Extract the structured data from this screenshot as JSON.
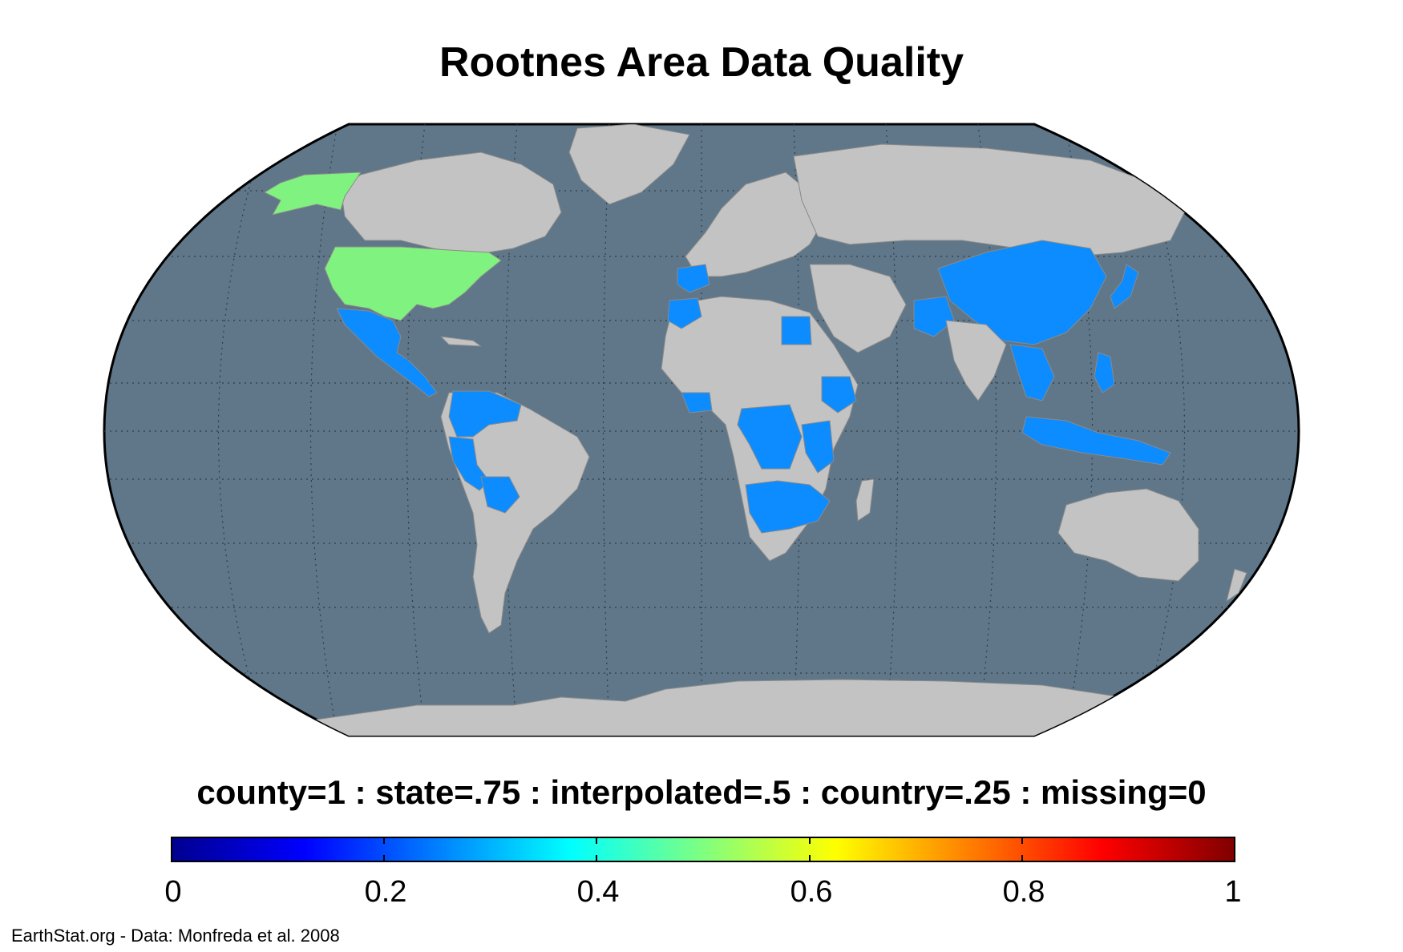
{
  "title": "Rootnes Area Data Quality",
  "legend": {
    "caption": "county=1 : state=.75 : interpolated=.5 : country=.25 : missing=0",
    "ticks": [
      "0",
      "0.2",
      "0.4",
      "0.6",
      "0.8",
      "1"
    ],
    "colormap": "jet",
    "range": [
      0,
      1
    ]
  },
  "credit": "EarthStat.org - Data: Monfreda et al. 2008",
  "colors": {
    "ocean": "#5f7789",
    "land_missing": "#c3c3c3",
    "country_level": "#0c8cff",
    "county_level": "#80f27f"
  },
  "regions": [
    {
      "name": "Alaska",
      "value": 0.5
    },
    {
      "name": "United States",
      "value": 0.5
    },
    {
      "name": "Mexico",
      "value": 0.25
    },
    {
      "name": "Central America",
      "value": 0.25
    },
    {
      "name": "Colombia",
      "value": 0.25
    },
    {
      "name": "Venezuela",
      "value": 0.25
    },
    {
      "name": "Peru",
      "value": 0.25
    },
    {
      "name": "Bolivia",
      "value": 0.25
    },
    {
      "name": "Morocco",
      "value": 0.25
    },
    {
      "name": "Portugal",
      "value": 0.25
    },
    {
      "name": "Egypt",
      "value": 0.25
    },
    {
      "name": "Ethiopia",
      "value": 0.25
    },
    {
      "name": "Ivory Coast",
      "value": 0.25
    },
    {
      "name": "Cameroon",
      "value": 0.25
    },
    {
      "name": "DR Congo",
      "value": 0.25
    },
    {
      "name": "Tanzania",
      "value": 0.25
    },
    {
      "name": "Angola",
      "value": 0.25
    },
    {
      "name": "Zimbabwe",
      "value": 0.25
    },
    {
      "name": "Mozambique",
      "value": 0.25
    },
    {
      "name": "China",
      "value": 0.25
    },
    {
      "name": "Japan",
      "value": 0.25
    },
    {
      "name": "Pakistan",
      "value": 0.25
    },
    {
      "name": "Thailand",
      "value": 0.25
    },
    {
      "name": "Philippines",
      "value": 0.25
    },
    {
      "name": "Indonesia",
      "value": 0.25
    },
    {
      "name": "Papua New Guinea",
      "value": 0.25
    }
  ]
}
